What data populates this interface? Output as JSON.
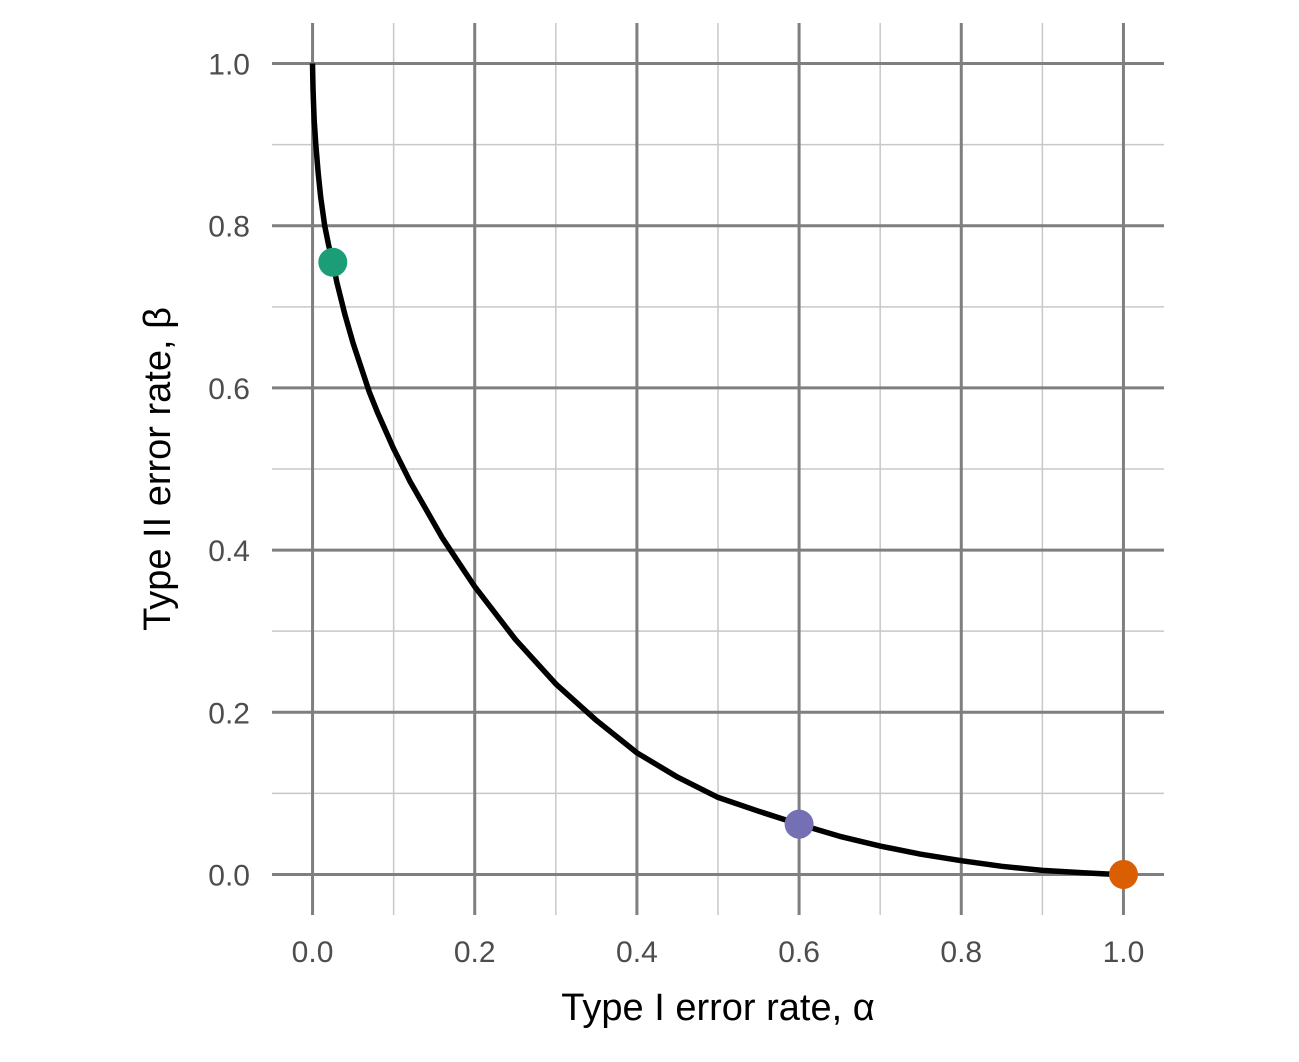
{
  "chart_data": {
    "type": "line",
    "title": "",
    "xlabel": "Type I error rate, α",
    "ylabel": "Type II error rate, β",
    "xlim": [
      -0.05,
      1.05
    ],
    "ylim": [
      -0.05,
      1.05
    ],
    "x_ticks": [
      0.0,
      0.2,
      0.4,
      0.6,
      0.8,
      1.0
    ],
    "x_tick_labels": [
      "0.0",
      "0.2",
      "0.4",
      "0.6",
      "0.8",
      "1.0"
    ],
    "y_ticks": [
      0.0,
      0.2,
      0.4,
      0.6,
      0.8,
      1.0
    ],
    "y_tick_labels": [
      "0.0",
      "0.2",
      "0.4",
      "0.6",
      "0.8",
      "1.0"
    ],
    "minor_ticks": [
      0.1,
      0.3,
      0.5,
      0.7,
      0.9
    ],
    "grid": true,
    "legend": "none",
    "series": [
      {
        "x": [
          0.0,
          0.0005,
          0.001,
          0.002,
          0.004,
          0.007,
          0.01,
          0.015,
          0.02,
          0.025,
          0.03,
          0.04,
          0.05,
          0.06,
          0.07,
          0.08,
          0.1,
          0.12,
          0.14,
          0.16,
          0.18,
          0.2,
          0.25,
          0.3,
          0.35,
          0.4,
          0.45,
          0.5,
          0.55,
          0.6,
          0.65,
          0.7,
          0.75,
          0.8,
          0.85,
          0.9,
          0.95,
          0.98,
          1.0
        ],
        "y": [
          1.0,
          0.97,
          0.955,
          0.93,
          0.9,
          0.865,
          0.835,
          0.8,
          0.775,
          0.755,
          0.73,
          0.69,
          0.655,
          0.625,
          0.595,
          0.57,
          0.525,
          0.485,
          0.45,
          0.415,
          0.385,
          0.355,
          0.29,
          0.235,
          0.19,
          0.15,
          0.12,
          0.095,
          0.078,
          0.062,
          0.047,
          0.035,
          0.025,
          0.017,
          0.01,
          0.005,
          0.002,
          0.0005,
          0.0
        ]
      }
    ],
    "points": [
      {
        "x": 0.025,
        "y": 0.755,
        "color": "#1b9e77"
      },
      {
        "x": 0.6,
        "y": 0.062,
        "color": "#7570b3"
      },
      {
        "x": 1.0,
        "y": 0.0,
        "color": "#d95f02"
      }
    ]
  }
}
